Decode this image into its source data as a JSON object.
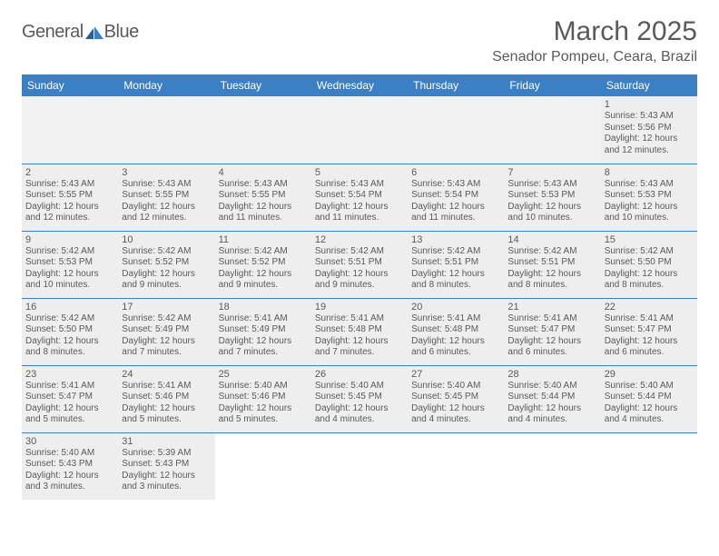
{
  "logo": {
    "text1": "General",
    "text2": "Blue"
  },
  "title": "March 2025",
  "location": "Senador Pompeu, Ceara, Brazil",
  "colors": {
    "header_bg": "#3b7fc4",
    "header_fg": "#ffffff",
    "text": "#5a5a5a",
    "shaded": "#eeeeee",
    "rule": "#3b7fc4"
  },
  "weekdays": [
    "Sunday",
    "Monday",
    "Tuesday",
    "Wednesday",
    "Thursday",
    "Friday",
    "Saturday"
  ],
  "weeks": [
    [
      null,
      null,
      null,
      null,
      null,
      null,
      {
        "n": "1",
        "sr": "5:43 AM",
        "ss": "5:56 PM",
        "dl": "12 hours and 12 minutes."
      }
    ],
    [
      {
        "n": "2",
        "sr": "5:43 AM",
        "ss": "5:55 PM",
        "dl": "12 hours and 12 minutes."
      },
      {
        "n": "3",
        "sr": "5:43 AM",
        "ss": "5:55 PM",
        "dl": "12 hours and 12 minutes."
      },
      {
        "n": "4",
        "sr": "5:43 AM",
        "ss": "5:55 PM",
        "dl": "12 hours and 11 minutes."
      },
      {
        "n": "5",
        "sr": "5:43 AM",
        "ss": "5:54 PM",
        "dl": "12 hours and 11 minutes."
      },
      {
        "n": "6",
        "sr": "5:43 AM",
        "ss": "5:54 PM",
        "dl": "12 hours and 11 minutes."
      },
      {
        "n": "7",
        "sr": "5:43 AM",
        "ss": "5:53 PM",
        "dl": "12 hours and 10 minutes."
      },
      {
        "n": "8",
        "sr": "5:43 AM",
        "ss": "5:53 PM",
        "dl": "12 hours and 10 minutes."
      }
    ],
    [
      {
        "n": "9",
        "sr": "5:42 AM",
        "ss": "5:53 PM",
        "dl": "12 hours and 10 minutes."
      },
      {
        "n": "10",
        "sr": "5:42 AM",
        "ss": "5:52 PM",
        "dl": "12 hours and 9 minutes."
      },
      {
        "n": "11",
        "sr": "5:42 AM",
        "ss": "5:52 PM",
        "dl": "12 hours and 9 minutes."
      },
      {
        "n": "12",
        "sr": "5:42 AM",
        "ss": "5:51 PM",
        "dl": "12 hours and 9 minutes."
      },
      {
        "n": "13",
        "sr": "5:42 AM",
        "ss": "5:51 PM",
        "dl": "12 hours and 8 minutes."
      },
      {
        "n": "14",
        "sr": "5:42 AM",
        "ss": "5:51 PM",
        "dl": "12 hours and 8 minutes."
      },
      {
        "n": "15",
        "sr": "5:42 AM",
        "ss": "5:50 PM",
        "dl": "12 hours and 8 minutes."
      }
    ],
    [
      {
        "n": "16",
        "sr": "5:42 AM",
        "ss": "5:50 PM",
        "dl": "12 hours and 8 minutes."
      },
      {
        "n": "17",
        "sr": "5:42 AM",
        "ss": "5:49 PM",
        "dl": "12 hours and 7 minutes."
      },
      {
        "n": "18",
        "sr": "5:41 AM",
        "ss": "5:49 PM",
        "dl": "12 hours and 7 minutes."
      },
      {
        "n": "19",
        "sr": "5:41 AM",
        "ss": "5:48 PM",
        "dl": "12 hours and 7 minutes."
      },
      {
        "n": "20",
        "sr": "5:41 AM",
        "ss": "5:48 PM",
        "dl": "12 hours and 6 minutes."
      },
      {
        "n": "21",
        "sr": "5:41 AM",
        "ss": "5:47 PM",
        "dl": "12 hours and 6 minutes."
      },
      {
        "n": "22",
        "sr": "5:41 AM",
        "ss": "5:47 PM",
        "dl": "12 hours and 6 minutes."
      }
    ],
    [
      {
        "n": "23",
        "sr": "5:41 AM",
        "ss": "5:47 PM",
        "dl": "12 hours and 5 minutes."
      },
      {
        "n": "24",
        "sr": "5:41 AM",
        "ss": "5:46 PM",
        "dl": "12 hours and 5 minutes."
      },
      {
        "n": "25",
        "sr": "5:40 AM",
        "ss": "5:46 PM",
        "dl": "12 hours and 5 minutes."
      },
      {
        "n": "26",
        "sr": "5:40 AM",
        "ss": "5:45 PM",
        "dl": "12 hours and 4 minutes."
      },
      {
        "n": "27",
        "sr": "5:40 AM",
        "ss": "5:45 PM",
        "dl": "12 hours and 4 minutes."
      },
      {
        "n": "28",
        "sr": "5:40 AM",
        "ss": "5:44 PM",
        "dl": "12 hours and 4 minutes."
      },
      {
        "n": "29",
        "sr": "5:40 AM",
        "ss": "5:44 PM",
        "dl": "12 hours and 4 minutes."
      }
    ],
    [
      {
        "n": "30",
        "sr": "5:40 AM",
        "ss": "5:43 PM",
        "dl": "12 hours and 3 minutes."
      },
      {
        "n": "31",
        "sr": "5:39 AM",
        "ss": "5:43 PM",
        "dl": "12 hours and 3 minutes."
      },
      null,
      null,
      null,
      null,
      null
    ]
  ],
  "labels": {
    "sunrise": "Sunrise:",
    "sunset": "Sunset:",
    "daylight": "Daylight:"
  }
}
